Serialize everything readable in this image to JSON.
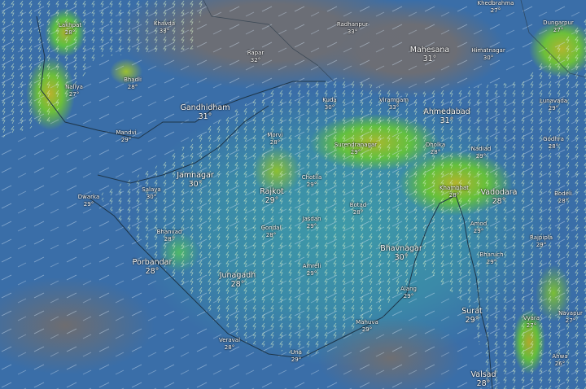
{
  "map": {
    "layer": "rain-thunder",
    "colors": {
      "sea": "#3a6ea8",
      "land": "#3e9aa8",
      "rain_green": "#62c040",
      "rain_yellow": "#b2b42c",
      "dry_grey": "#6c6e75"
    }
  },
  "cities": [
    {
      "name": "Lakhpat",
      "temp": "28°"
    },
    {
      "name": "Khavda",
      "temp": "33°"
    },
    {
      "name": "Rapar",
      "temp": "32°"
    },
    {
      "name": "Radhanpur",
      "temp": "33°"
    },
    {
      "name": "Mahesana",
      "temp": "31°"
    },
    {
      "name": "Himatnagar",
      "temp": "30°"
    },
    {
      "name": "Khedbrahma",
      "temp": "27°"
    },
    {
      "name": "Dungarpur",
      "temp": "27°"
    },
    {
      "name": "Bhadli",
      "temp": "28°"
    },
    {
      "name": "Naliya",
      "temp": "27°"
    },
    {
      "name": "Gandhidham",
      "temp": "31°"
    },
    {
      "name": "Kuda",
      "temp": "30°"
    },
    {
      "name": "Viramgam",
      "temp": "33°"
    },
    {
      "name": "Ahmedabad",
      "temp": "31°"
    },
    {
      "name": "Lunavada",
      "temp": "29°"
    },
    {
      "name": "Mandvi",
      "temp": "29°"
    },
    {
      "name": "Morvi",
      "temp": "28°"
    },
    {
      "name": "Surendranagar",
      "temp": "29°"
    },
    {
      "name": "Dholka",
      "temp": "28°"
    },
    {
      "name": "Nadiad",
      "temp": "29°"
    },
    {
      "name": "Godhra",
      "temp": "28°"
    },
    {
      "name": "Jamnagar",
      "temp": "30°"
    },
    {
      "name": "Salaya",
      "temp": "30°"
    },
    {
      "name": "Dwarka",
      "temp": "29°"
    },
    {
      "name": "Chotila",
      "temp": "29°"
    },
    {
      "name": "Rajkot",
      "temp": "29°"
    },
    {
      "name": "Khambhat",
      "temp": "28°"
    },
    {
      "name": "Vadodara",
      "temp": "28°"
    },
    {
      "name": "Bodeli",
      "temp": "28°"
    },
    {
      "name": "Botad",
      "temp": "28°"
    },
    {
      "name": "Jasdan",
      "temp": "29°"
    },
    {
      "name": "Gondal",
      "temp": "28°"
    },
    {
      "name": "Amod",
      "temp": "29°"
    },
    {
      "name": "Bhanvad",
      "temp": "28°"
    },
    {
      "name": "Rajpipla",
      "temp": "29°"
    },
    {
      "name": "Bharuch",
      "temp": "29°"
    },
    {
      "name": "Porbandar",
      "temp": "28°"
    },
    {
      "name": "Bhavnagar",
      "temp": "30°"
    },
    {
      "name": "Amreli",
      "temp": "29°"
    },
    {
      "name": "Junagadh",
      "temp": "28°"
    },
    {
      "name": "Alang",
      "temp": "29°"
    },
    {
      "name": "Surat",
      "temp": "29°"
    },
    {
      "name": "Mahuva",
      "temp": "29°"
    },
    {
      "name": "Vyara",
      "temp": "27°"
    },
    {
      "name": "Navapur",
      "temp": "27°"
    },
    {
      "name": "Veraval",
      "temp": "28°"
    },
    {
      "name": "Una",
      "temp": "29°"
    },
    {
      "name": "Ahwa",
      "temp": "26°"
    },
    {
      "name": "Valsad",
      "temp": "28°"
    }
  ]
}
